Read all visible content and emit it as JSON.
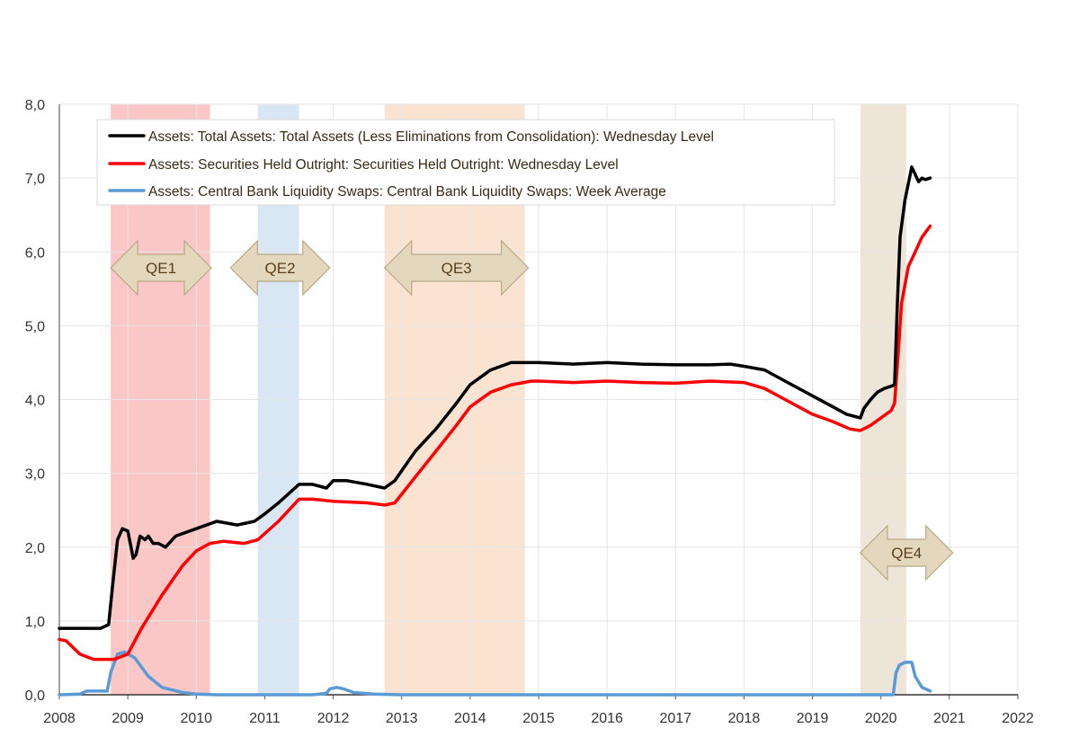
{
  "chart_data": {
    "type": "line",
    "title": "",
    "xlabel": "",
    "ylabel": "",
    "xlim": [
      2008,
      2022
    ],
    "ylim": [
      0,
      8
    ],
    "x_ticks": [
      "2008",
      "2009",
      "2010",
      "2011",
      "2012",
      "2013",
      "2014",
      "2015",
      "2016",
      "2017",
      "2018",
      "2019",
      "2020",
      "2021",
      "2022"
    ],
    "y_ticks": [
      "0,0",
      "1,0",
      "2,0",
      "3,0",
      "4,0",
      "5,0",
      "6,0",
      "7,0",
      "8,0"
    ],
    "grid": true,
    "legend_position": "top-left",
    "shaded_periods": [
      {
        "name": "QE1",
        "start": 2008.75,
        "end": 2010.2,
        "color": "#fbc6c6",
        "arrow": [
          2008.75,
          2010.22
        ]
      },
      {
        "name": "QE2",
        "start": 2010.9,
        "end": 2011.5,
        "color": "#d9e6f4",
        "arrow": [
          2010.5,
          2011.95
        ]
      },
      {
        "name": "QE3",
        "start": 2012.75,
        "end": 2014.8,
        "color": "#fbe3d2",
        "arrow": [
          2012.75,
          2014.85
        ]
      },
      {
        "name": "QE4",
        "start": 2019.7,
        "end": 2020.37,
        "color": "#ece5d8",
        "arrow": [
          2019.7,
          2021.05
        ]
      }
    ],
    "series": [
      {
        "name": "Assets: Total Assets: Total Assets (Less Eliminations from Consolidation): Wednesday Level",
        "color": "#000000",
        "x": [
          2008.0,
          2008.6,
          2008.72,
          2008.78,
          2008.85,
          2008.92,
          2009.0,
          2009.08,
          2009.12,
          2009.18,
          2009.25,
          2009.3,
          2009.37,
          2009.45,
          2009.55,
          2009.7,
          2010.0,
          2010.3,
          2010.6,
          2010.85,
          2011.0,
          2011.2,
          2011.5,
          2011.7,
          2011.9,
          2012.0,
          2012.2,
          2012.5,
          2012.75,
          2012.9,
          2013.2,
          2013.5,
          2013.8,
          2014.0,
          2014.3,
          2014.6,
          2014.9,
          2015.0,
          2015.5,
          2016.0,
          2016.5,
          2017.0,
          2017.5,
          2017.8,
          2018.0,
          2018.3,
          2018.6,
          2019.0,
          2019.3,
          2019.5,
          2019.7,
          2019.75,
          2019.85,
          2019.95,
          2020.05,
          2020.15,
          2020.2,
          2020.24,
          2020.28,
          2020.35,
          2020.45,
          2020.55,
          2020.6,
          2020.65,
          2020.72
        ],
        "values": [
          0.9,
          0.9,
          0.95,
          1.5,
          2.1,
          2.25,
          2.22,
          1.85,
          1.9,
          2.15,
          2.1,
          2.15,
          2.05,
          2.05,
          2.0,
          2.15,
          2.25,
          2.35,
          2.3,
          2.35,
          2.45,
          2.6,
          2.85,
          2.85,
          2.8,
          2.9,
          2.9,
          2.85,
          2.8,
          2.9,
          3.3,
          3.6,
          3.95,
          4.2,
          4.4,
          4.5,
          4.5,
          4.5,
          4.48,
          4.5,
          4.48,
          4.47,
          4.47,
          4.48,
          4.45,
          4.4,
          4.25,
          4.05,
          3.9,
          3.8,
          3.75,
          3.88,
          4.0,
          4.1,
          4.15,
          4.18,
          4.2,
          5.3,
          6.2,
          6.7,
          7.15,
          6.95,
          7.0,
          6.98,
          7.0
        ]
      },
      {
        "name": "Assets: Securities Held Outright: Securities Held Outright: Wednesday Level",
        "color": "#ff0000",
        "x": [
          2008.0,
          2008.1,
          2008.3,
          2008.5,
          2008.8,
          2009.0,
          2009.2,
          2009.5,
          2009.8,
          2010.0,
          2010.2,
          2010.4,
          2010.7,
          2010.9,
          2011.2,
          2011.5,
          2011.7,
          2012.0,
          2012.5,
          2012.75,
          2012.9,
          2013.2,
          2013.5,
          2013.8,
          2014.0,
          2014.3,
          2014.6,
          2014.9,
          2015.0,
          2015.5,
          2016.0,
          2016.5,
          2017.0,
          2017.5,
          2018.0,
          2018.3,
          2018.6,
          2019.0,
          2019.3,
          2019.55,
          2019.7,
          2019.85,
          2020.0,
          2020.15,
          2020.2,
          2020.25,
          2020.3,
          2020.4,
          2020.5,
          2020.6,
          2020.72
        ],
        "values": [
          0.75,
          0.73,
          0.55,
          0.48,
          0.48,
          0.55,
          0.9,
          1.35,
          1.75,
          1.95,
          2.05,
          2.08,
          2.05,
          2.1,
          2.35,
          2.65,
          2.65,
          2.62,
          2.6,
          2.57,
          2.6,
          2.95,
          3.3,
          3.65,
          3.9,
          4.1,
          4.2,
          4.25,
          4.25,
          4.23,
          4.25,
          4.23,
          4.22,
          4.25,
          4.23,
          4.15,
          4.0,
          3.8,
          3.7,
          3.6,
          3.58,
          3.65,
          3.75,
          3.85,
          3.95,
          4.6,
          5.3,
          5.8,
          6.0,
          6.2,
          6.35
        ]
      },
      {
        "name": "Assets: Central Bank Liquidity Swaps: Central Bank Liquidity Swaps: Week Average",
        "color": "#5b9bd5",
        "x": [
          2008.0,
          2008.3,
          2008.4,
          2008.7,
          2008.75,
          2008.85,
          2008.95,
          2009.1,
          2009.3,
          2009.5,
          2009.8,
          2010.0,
          2010.3,
          2011.7,
          2011.9,
          2011.95,
          2012.05,
          2012.15,
          2012.3,
          2012.6,
          2013.0,
          2020.18,
          2020.22,
          2020.27,
          2020.35,
          2020.45,
          2020.5,
          2020.6,
          2020.72
        ],
        "values": [
          0.0,
          0.01,
          0.05,
          0.05,
          0.3,
          0.55,
          0.58,
          0.5,
          0.25,
          0.1,
          0.03,
          0.01,
          0.0,
          0.0,
          0.02,
          0.08,
          0.1,
          0.08,
          0.03,
          0.01,
          0.0,
          0.0,
          0.3,
          0.4,
          0.44,
          0.44,
          0.25,
          0.1,
          0.05
        ]
      }
    ]
  }
}
